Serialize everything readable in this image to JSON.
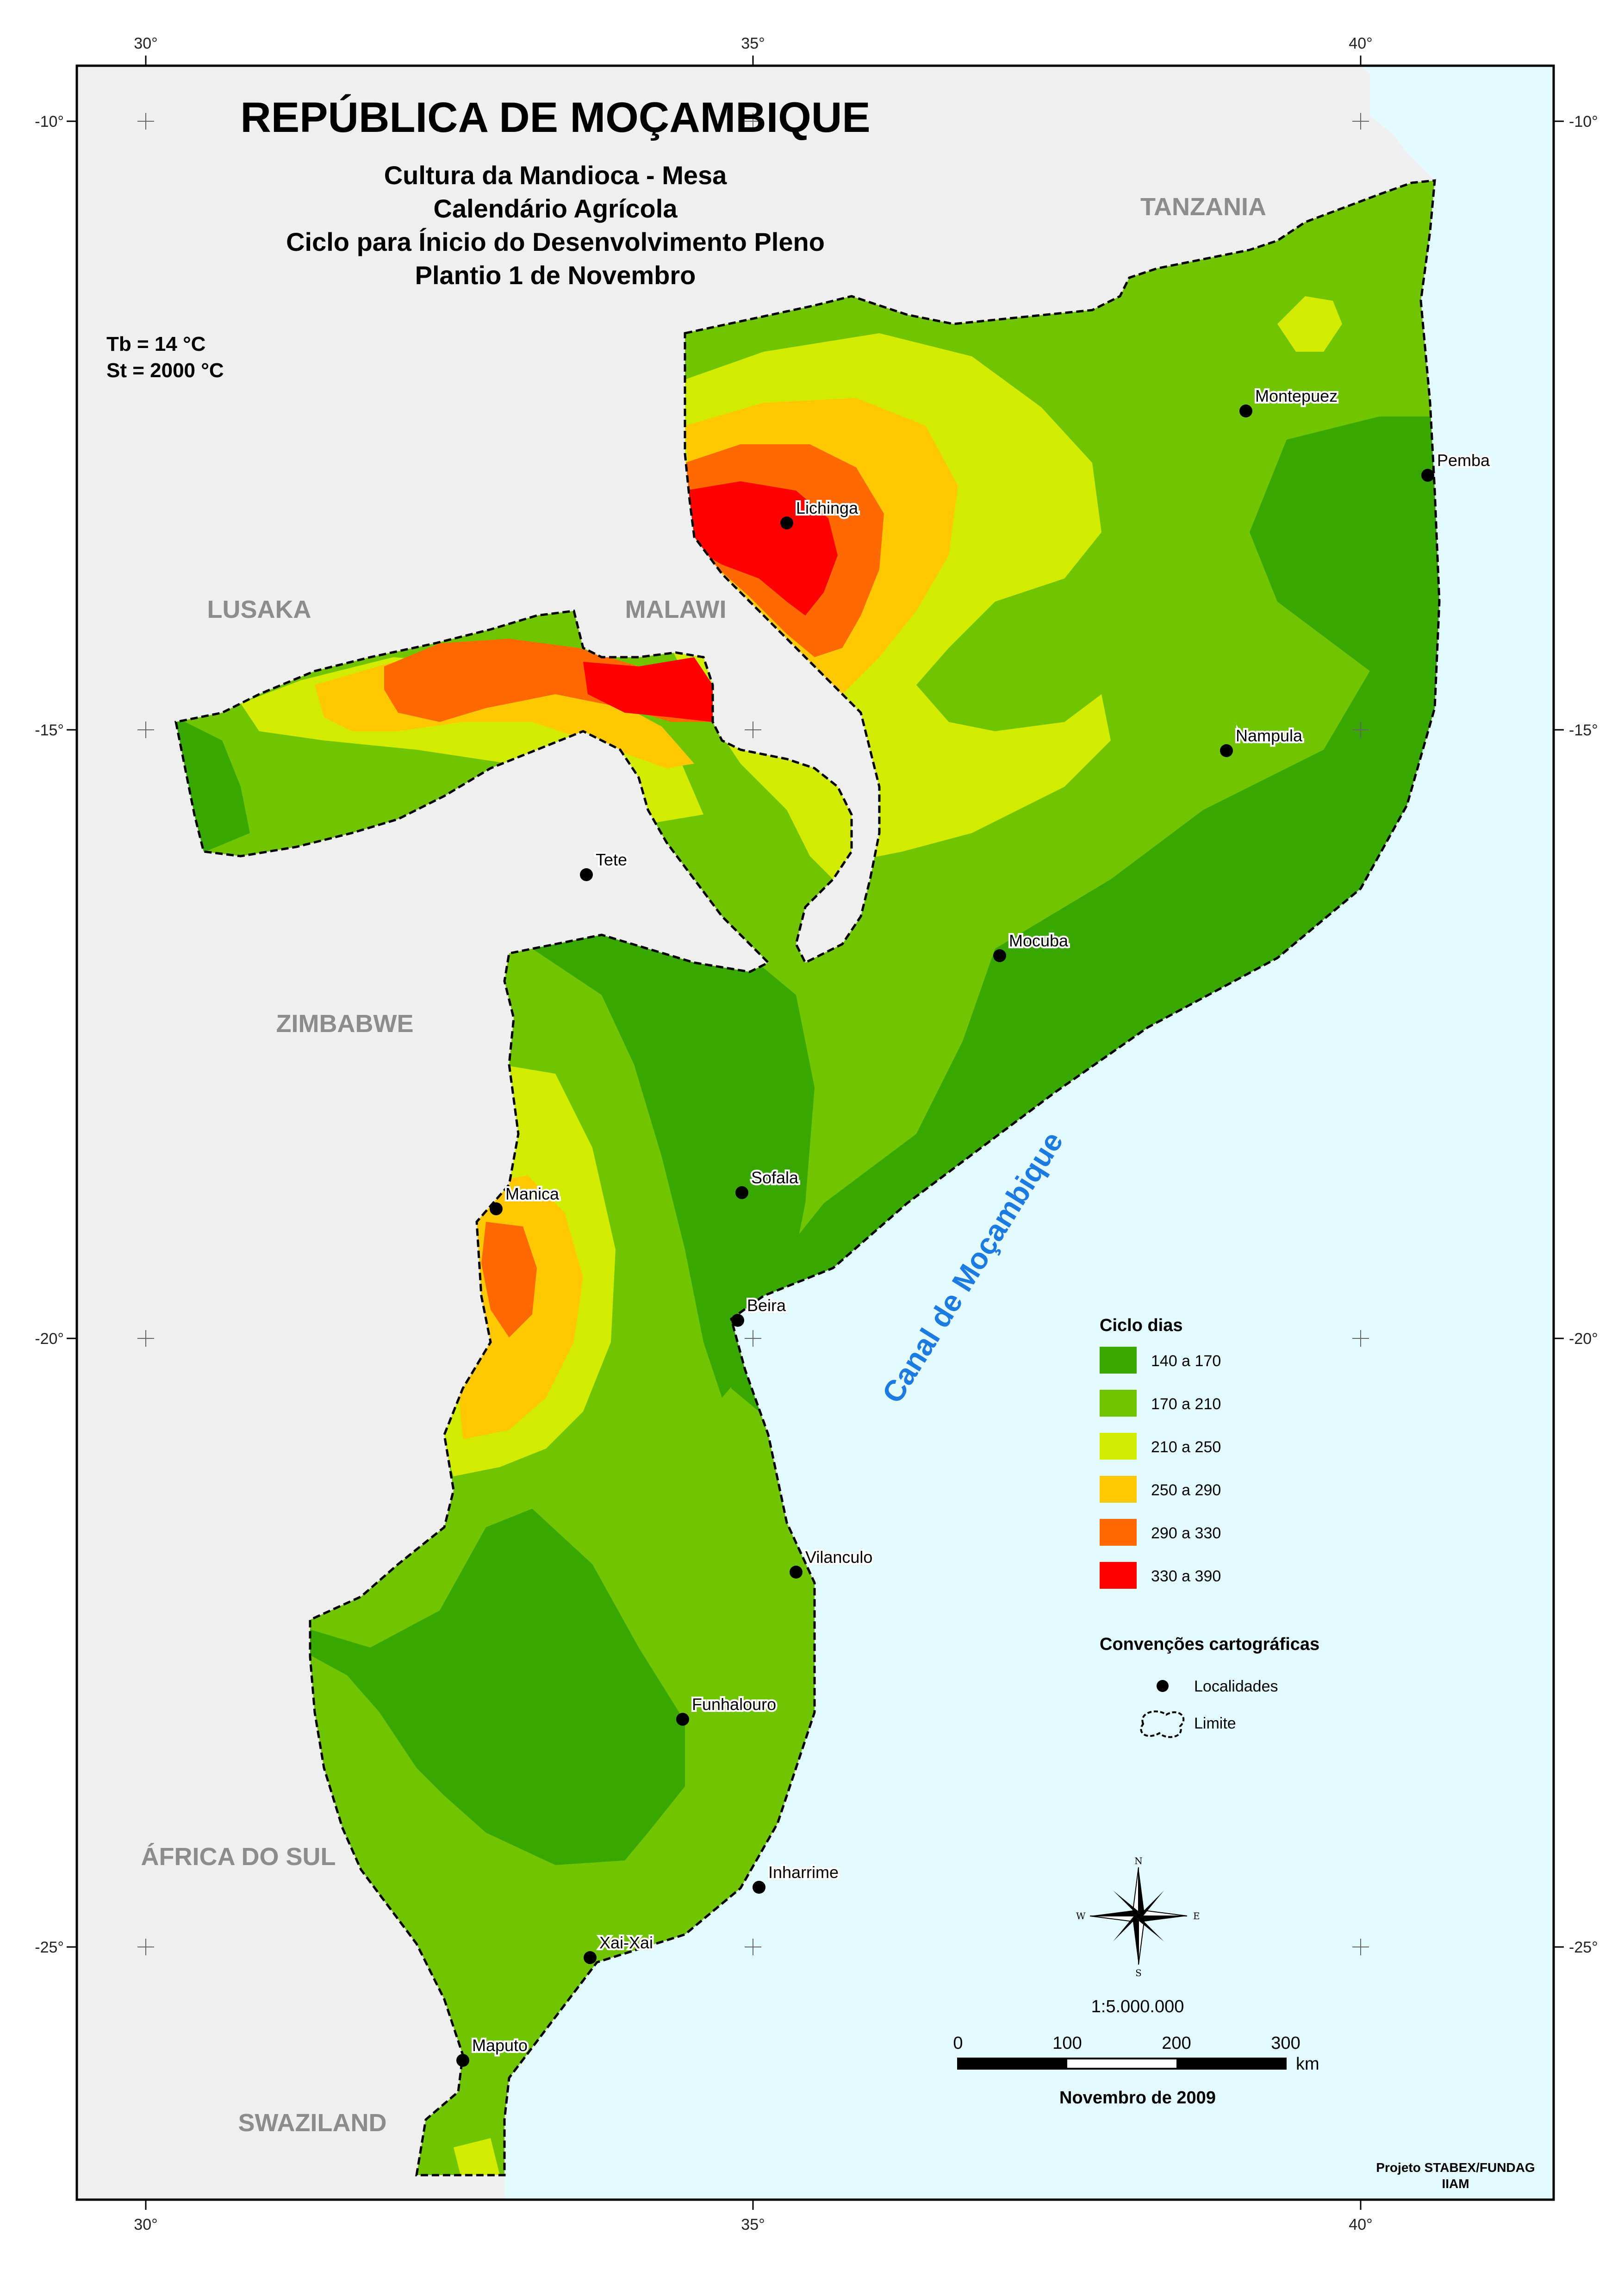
{
  "title": "REPÚBLICA DE MOÇAMBIQUE",
  "subtitle_lines": [
    "Cultura da Mandioca - Mesa",
    "Calendário Agrícola",
    "Ciclo para Ínicio do Desenvolvimento Pleno",
    "Plantio 1 de Novembro"
  ],
  "parameters": [
    "Tb = 14 °C",
    "St =  2000 °C"
  ],
  "graticule": {
    "lon_labels": [
      "30°",
      "35°",
      "40°"
    ],
    "lat_labels": [
      "-10°",
      "-15°",
      "-20°",
      "-25°"
    ]
  },
  "countries": [
    "TANZANIA",
    "MALAWI",
    "LUSAKA",
    "ZIMBABWE",
    "ÁFRICA DO SUL",
    "SWAZILAND"
  ],
  "sea_label": "Canal de Moçambique",
  "localities": [
    {
      "name": "Montepuez"
    },
    {
      "name": "Pemba"
    },
    {
      "name": "Lichinga"
    },
    {
      "name": "Nampula"
    },
    {
      "name": "Tete"
    },
    {
      "name": "Mocuba"
    },
    {
      "name": "Sofala"
    },
    {
      "name": "Manica"
    },
    {
      "name": "Beira"
    },
    {
      "name": "Vilanculo"
    },
    {
      "name": "Funhalouro"
    },
    {
      "name": "Inharrime"
    },
    {
      "name": "Xai-Xai"
    },
    {
      "name": "Maputo"
    }
  ],
  "legend": {
    "title": "Ciclo dias",
    "classes": [
      {
        "label": "140 a 170",
        "color": "#38a800"
      },
      {
        "label": "170 a 210",
        "color": "#70c400"
      },
      {
        "label": "210 a 250",
        "color": "#d1ec00"
      },
      {
        "label": "250 a 290",
        "color": "#ffc800"
      },
      {
        "label": "290 a 330",
        "color": "#ff6a00"
      },
      {
        "label": "330 a 390",
        "color": "#ff0000"
      }
    ]
  },
  "conventions": {
    "title": "Convenções cartográficas",
    "items": [
      {
        "label": "Localidades"
      },
      {
        "label": "Limite"
      }
    ]
  },
  "compass": {
    "n": "N",
    "s": "S",
    "e": "E",
    "w": "W"
  },
  "scale": {
    "ratio": "1:5.000.000",
    "ticks": [
      "0",
      "100",
      "200",
      "300"
    ],
    "unit": "km"
  },
  "date": "Novembro de 2009",
  "credits": [
    "Projeto STABEX/FUNDAG",
    "IIAM"
  ],
  "colors": {
    "land_other": "#efefef",
    "sea": "#e3fafe"
  }
}
